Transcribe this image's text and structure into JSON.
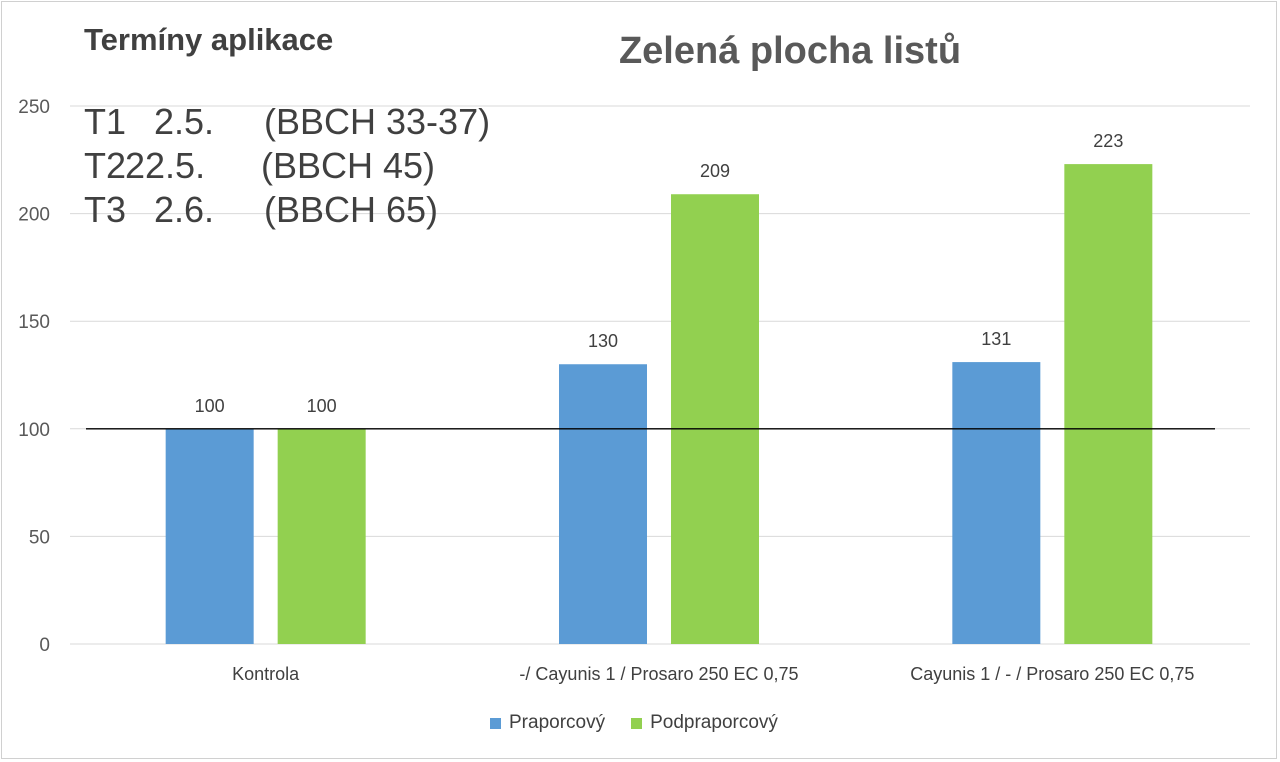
{
  "chart_data": {
    "type": "bar",
    "title": "Zelená plocha listů",
    "categories": [
      "Kontrola",
      "-/ Cayunis 1 / Prosaro 250 EC 0,75",
      "Cayunis 1 / - / Prosaro 250 EC 0,75"
    ],
    "series": [
      {
        "name": "Praporcový",
        "color": "#5B9BD5",
        "values": [
          100,
          130,
          131
        ]
      },
      {
        "name": "Podpraporcový",
        "color": "#92D050",
        "values": [
          100,
          209,
          223
        ]
      }
    ],
    "ylim": [
      0,
      250
    ],
    "yticks": [
      "0",
      "50",
      "100",
      "150",
      "200",
      "250"
    ],
    "reference_line": 100,
    "grid": true,
    "legend_position": "bottom"
  },
  "annotation": {
    "heading": "Termíny aplikace",
    "terms": [
      {
        "code": "T1",
        "date": "2.5.",
        "stage": "(BBCH 33-37)"
      },
      {
        "code": "T2",
        "date": "22.5.",
        "stage": "(BBCH 45)"
      },
      {
        "code": "T3",
        "date": "2.6.",
        "stage": "(BBCH 65)"
      }
    ]
  }
}
